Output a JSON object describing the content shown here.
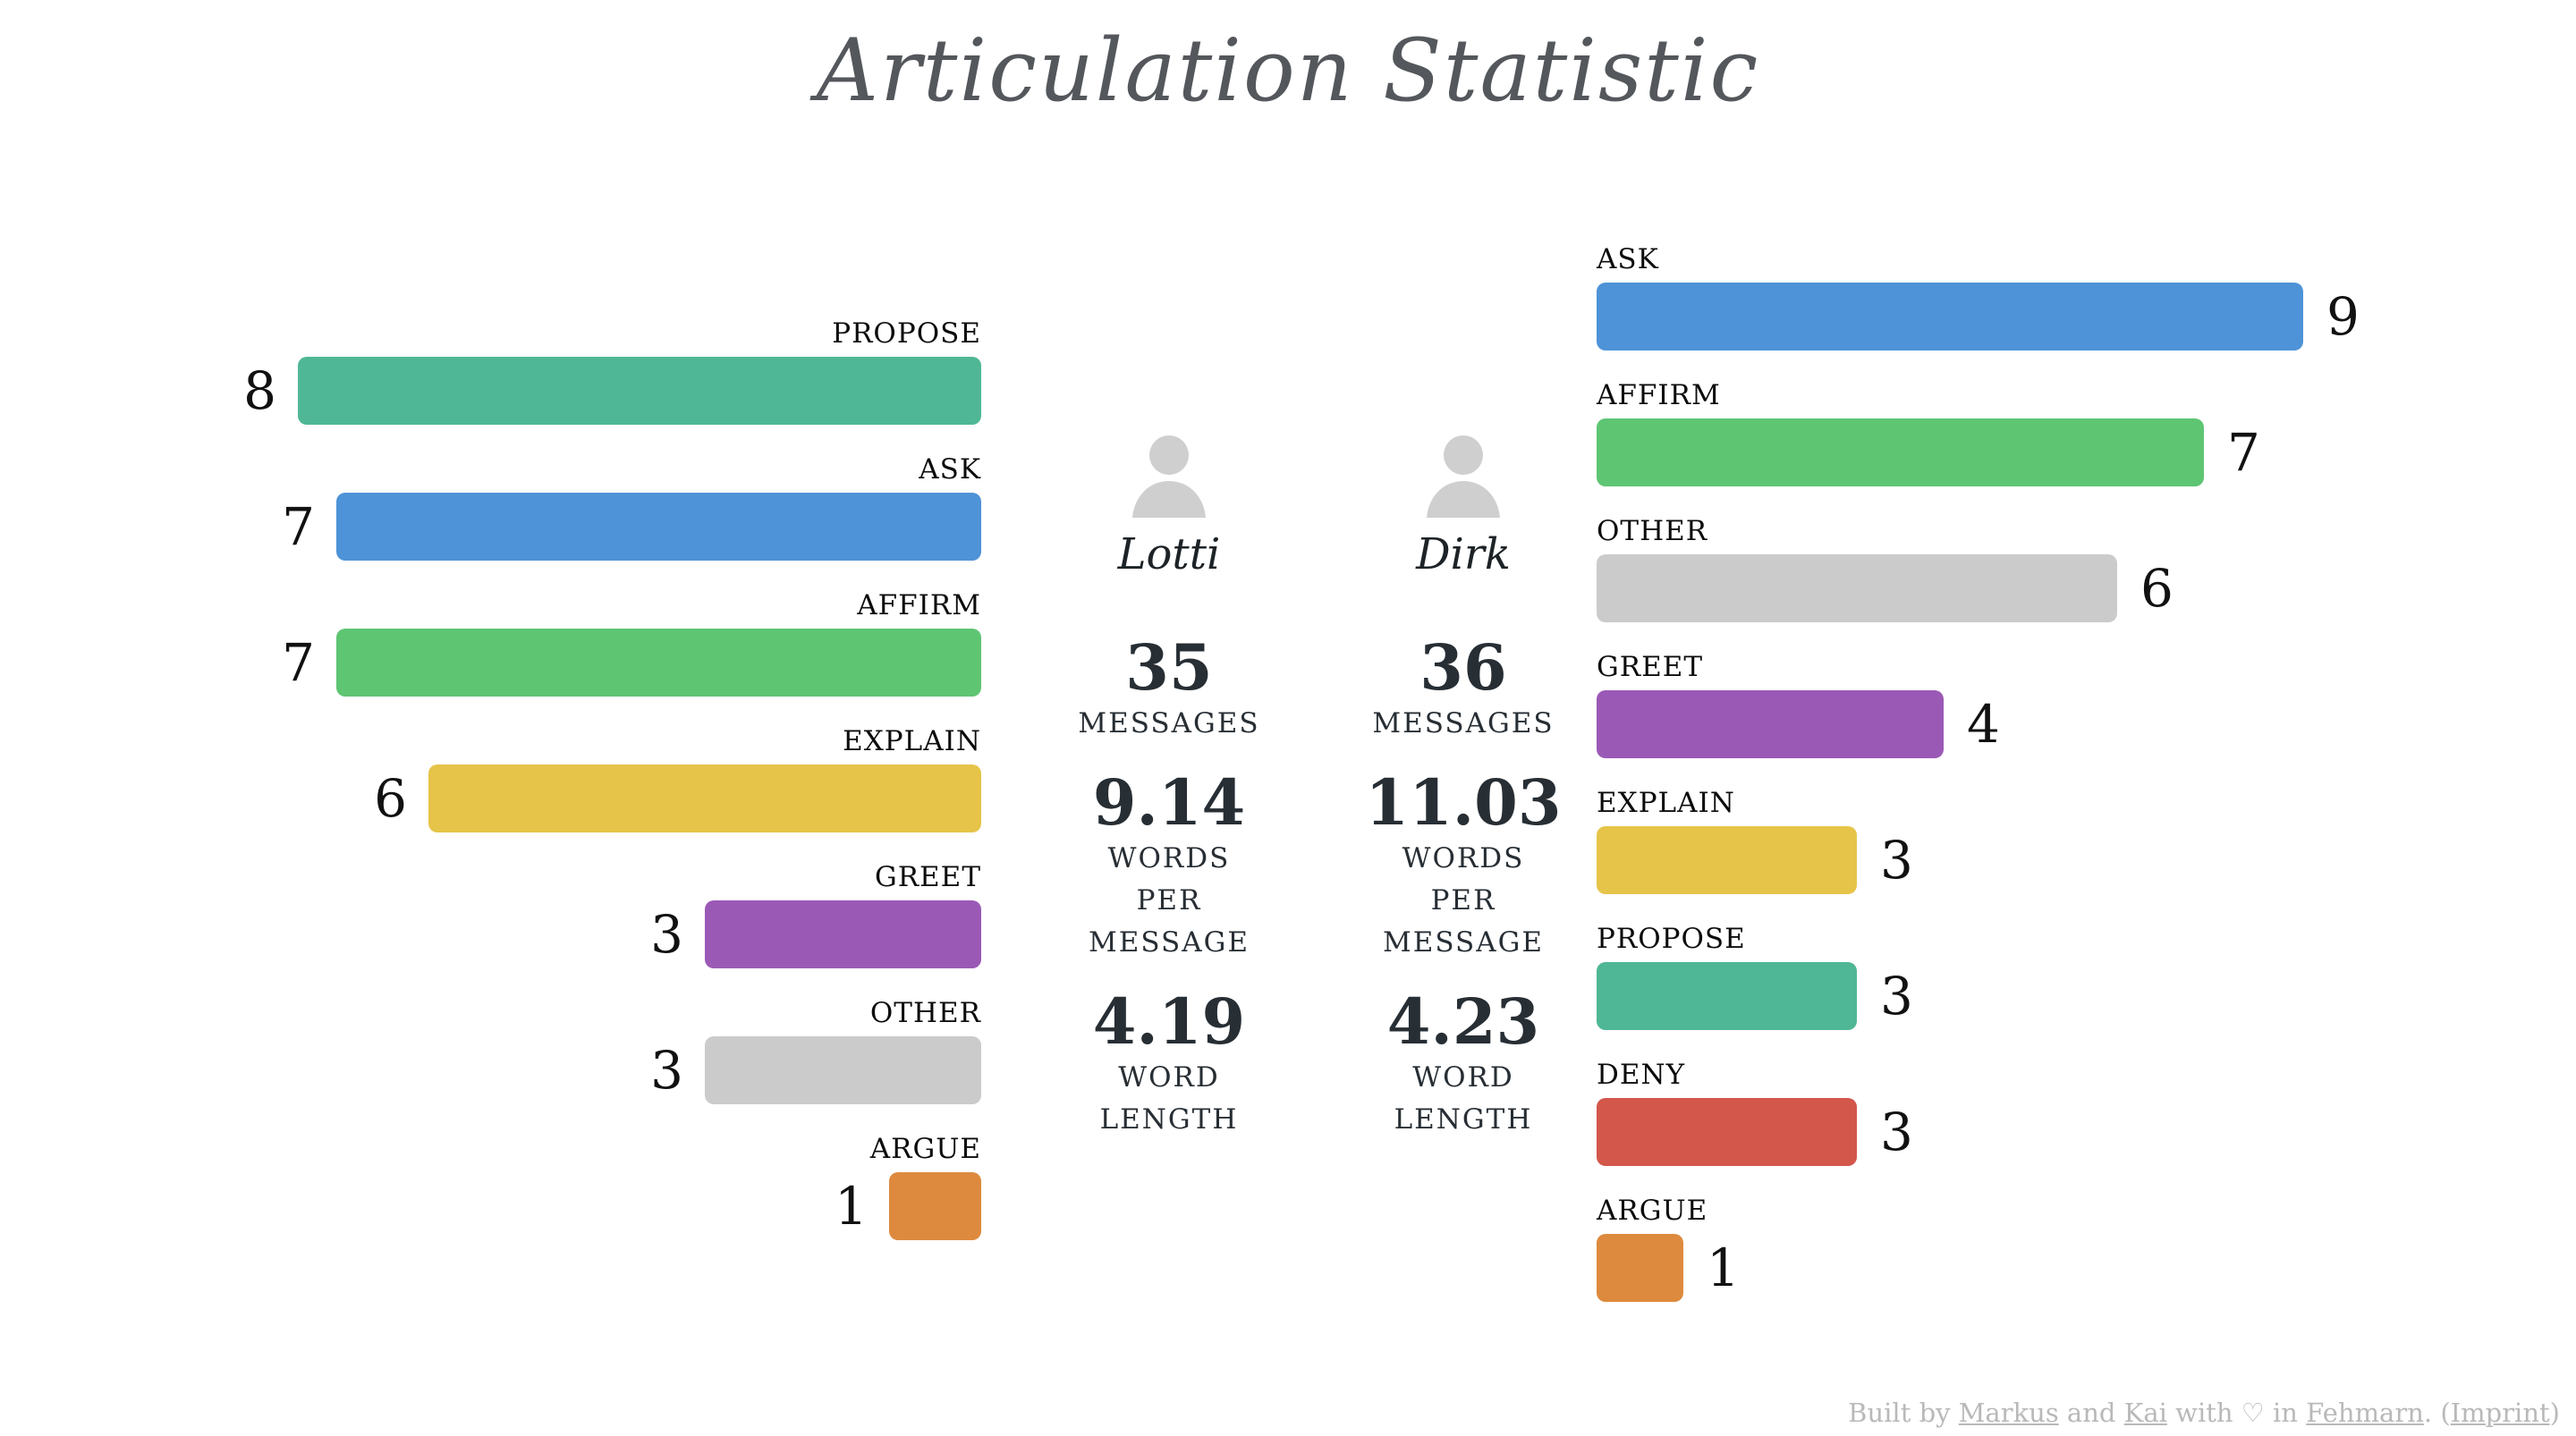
{
  "title": "Articulation Statistic",
  "people": [
    {
      "name": "Lotti",
      "stats": [
        {
          "value": "35",
          "label_lines": [
            "MESSAGES"
          ]
        },
        {
          "value": "9.14",
          "label_lines": [
            "WORDS",
            "PER",
            "MESSAGE"
          ]
        },
        {
          "value": "4.19",
          "label_lines": [
            "WORD",
            "LENGTH"
          ]
        }
      ]
    },
    {
      "name": "Dirk",
      "stats": [
        {
          "value": "36",
          "label_lines": [
            "MESSAGES"
          ]
        },
        {
          "value": "11.03",
          "label_lines": [
            "WORDS",
            "PER",
            "MESSAGE"
          ]
        },
        {
          "value": "4.23",
          "label_lines": [
            "WORD",
            "LENGTH"
          ]
        }
      ]
    }
  ],
  "chart_data": [
    {
      "type": "bar",
      "orientation": "horizontal",
      "person": "Lotti",
      "align": "right",
      "categories": [
        "PROPOSE",
        "ASK",
        "AFFIRM",
        "EXPLAIN",
        "GREET",
        "OTHER",
        "ARGUE"
      ],
      "values": [
        8,
        7,
        7,
        6,
        3,
        3,
        1
      ],
      "colors": [
        "#4FB795",
        "#4E93D7",
        "#5EC573",
        "#E6C449",
        "#9B59B6",
        "#CBCBCB",
        "#DD8A3E"
      ],
      "xlim": [
        0,
        8
      ],
      "grid": false,
      "legend": false
    },
    {
      "type": "bar",
      "orientation": "horizontal",
      "person": "Dirk",
      "align": "left",
      "categories": [
        "ASK",
        "AFFIRM",
        "OTHER",
        "GREET",
        "EXPLAIN",
        "PROPOSE",
        "DENY",
        "ARGUE"
      ],
      "values": [
        9,
        7,
        6,
        4,
        3,
        3,
        3,
        1
      ],
      "colors": [
        "#4E93D7",
        "#5EC573",
        "#CBCBCB",
        "#9B59B6",
        "#E6C449",
        "#4FB795",
        "#D3574B",
        "#DD8A3E"
      ],
      "xlim": [
        0,
        9
      ],
      "grid": false,
      "legend": false
    }
  ],
  "colors": {
    "propose": "#4FB795",
    "ask": "#4E93D7",
    "affirm": "#5EC573",
    "explain": "#E6C449",
    "greet": "#9B59B6",
    "other": "#CBCBCB",
    "argue": "#DD8A3E",
    "deny": "#D3574B",
    "title_text": "#54575b",
    "stat_text": "#272e34",
    "footer_text": "#b9b9b9",
    "avatar": "#cfcfcf"
  },
  "footer": {
    "parts": [
      {
        "text": "Built by "
      },
      {
        "text": "Markus",
        "link": true
      },
      {
        "text": " and "
      },
      {
        "text": "Kai",
        "link": true
      },
      {
        "text": " with ♡ in "
      },
      {
        "text": "Fehmarn",
        "link": true
      },
      {
        "text": ". ("
      },
      {
        "text": "Imprint",
        "link": true
      },
      {
        "text": ")"
      }
    ]
  }
}
